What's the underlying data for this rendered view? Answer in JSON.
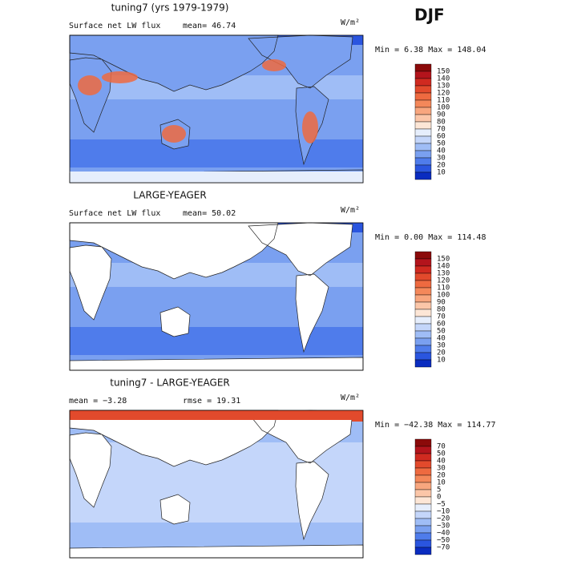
{
  "season": "DJF",
  "panels": [
    {
      "title": "tuning7 (yrs 1979-1979)",
      "left": "Surface net LW flux",
      "stat1": "mean=  46.74",
      "stat2": null,
      "units": "W/m²",
      "range": "Min =   6.38 Max = 148.04",
      "colorbar": {
        "labels": [
          "150",
          "140",
          "130",
          "120",
          "110",
          "100",
          "90",
          "80",
          "70",
          "60",
          "50",
          "40",
          "30",
          "20",
          "10"
        ],
        "colors": [
          "#8b0a0a",
          "#b3141c",
          "#d02a20",
          "#e24a2c",
          "#ee6a40",
          "#f4885a",
          "#f8a67e",
          "#fbc6a8",
          "#fde6d6",
          "#e6eefc",
          "#c4d6fa",
          "#9fbdf6",
          "#7aa0f0",
          "#4f7ceb",
          "#2a55df",
          "#0a2cc0"
        ]
      },
      "map": "model"
    },
    {
      "title": "LARGE-YEAGER",
      "left": "Surface net LW flux",
      "stat1": "mean=  50.02",
      "stat2": null,
      "units": "W/m²",
      "range": "Min =   0.00 Max = 114.48",
      "colorbar": {
        "labels": [
          "150",
          "140",
          "130",
          "120",
          "110",
          "100",
          "90",
          "80",
          "70",
          "60",
          "50",
          "40",
          "30",
          "20",
          "10"
        ],
        "colors": [
          "#8b0a0a",
          "#b3141c",
          "#d02a20",
          "#e24a2c",
          "#ee6a40",
          "#f4885a",
          "#f8a67e",
          "#fbc6a8",
          "#fde6d6",
          "#e6eefc",
          "#c4d6fa",
          "#9fbdf6",
          "#7aa0f0",
          "#4f7ceb",
          "#2a55df",
          "#0a2cc0"
        ]
      },
      "map": "obs"
    },
    {
      "title": "tuning7 - LARGE-YEAGER",
      "left": "mean =  −3.28",
      "stat1": null,
      "stat2": "rmse =  19.31",
      "units": "W/m²",
      "range": "Min = −42.38 Max = 114.77",
      "colorbar": {
        "labels": [
          "70",
          "50",
          "40",
          "30",
          "20",
          "10",
          "5",
          "0",
          "−5",
          "−10",
          "−20",
          "−30",
          "−40",
          "−50",
          "−70"
        ],
        "colors": [
          "#8b0a0a",
          "#b3141c",
          "#d02a20",
          "#e24a2c",
          "#ee6a40",
          "#f4885a",
          "#f8a67e",
          "#fbc6a8",
          "#fde6d6",
          "#e6eefc",
          "#c4d6fa",
          "#9fbdf6",
          "#7aa0f0",
          "#4f7ceb",
          "#2a55df",
          "#0a2cc0"
        ]
      },
      "map": "diff"
    }
  ]
}
